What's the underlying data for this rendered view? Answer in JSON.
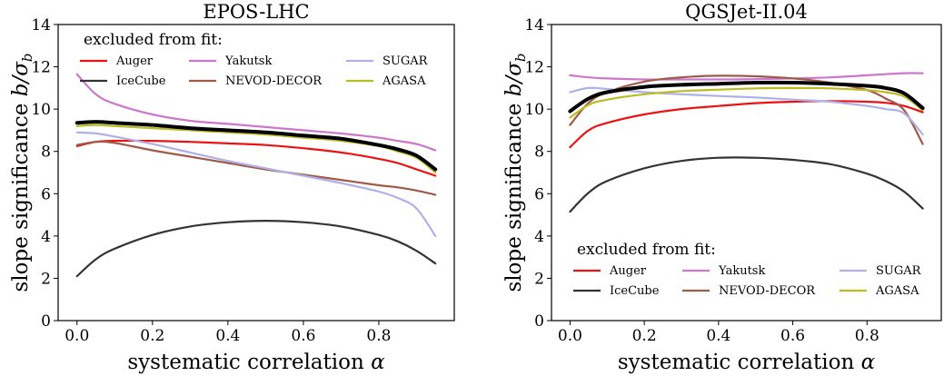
{
  "chart_data": [
    {
      "type": "line",
      "title": "EPOS-LHC",
      "xlabel": "systematic correlation α",
      "ylabel": "slope significance b/σ_b",
      "xlim": [
        -0.05,
        1.0
      ],
      "ylim": [
        0,
        14
      ],
      "xticks": [
        "0.0",
        "0.2",
        "0.4",
        "0.6",
        "0.8"
      ],
      "yticks": [
        "0",
        "2",
        "4",
        "6",
        "8",
        "10",
        "12",
        "14"
      ],
      "legend_title": "excluded from fit:",
      "legend_position": "top",
      "x": [
        0.0,
        0.05,
        0.1,
        0.2,
        0.3,
        0.4,
        0.5,
        0.6,
        0.7,
        0.8,
        0.85,
        0.9,
        0.95
      ],
      "series": [
        {
          "name": "Auger",
          "color": "#ee1111",
          "values": [
            8.25,
            8.45,
            8.5,
            8.5,
            8.45,
            8.38,
            8.3,
            8.15,
            7.95,
            7.65,
            7.45,
            7.15,
            6.85
          ]
        },
        {
          "name": "IceCube",
          "color": "#333333",
          "values": [
            2.1,
            2.9,
            3.4,
            4.05,
            4.45,
            4.65,
            4.72,
            4.65,
            4.45,
            4.05,
            3.75,
            3.3,
            2.7
          ]
        },
        {
          "name": "Yakutsk",
          "color": "#cc77cc",
          "values": [
            11.65,
            10.7,
            10.25,
            9.75,
            9.45,
            9.3,
            9.15,
            9.0,
            8.85,
            8.65,
            8.5,
            8.35,
            8.05
          ]
        },
        {
          "name": "NEVOD-DECOR",
          "color": "#a05a4a",
          "values": [
            8.3,
            8.45,
            8.4,
            8.05,
            7.75,
            7.45,
            7.15,
            6.9,
            6.65,
            6.4,
            6.3,
            6.15,
            5.95
          ]
        },
        {
          "name": "SUGAR",
          "color": "#b0b0e8",
          "values": [
            8.9,
            8.85,
            8.7,
            8.35,
            7.95,
            7.55,
            7.2,
            6.85,
            6.5,
            6.1,
            5.8,
            5.3,
            4.0
          ]
        },
        {
          "name": "AGASA",
          "color": "#bbbb22",
          "values": [
            9.2,
            9.25,
            9.2,
            9.1,
            9.0,
            8.9,
            8.8,
            8.65,
            8.5,
            8.25,
            8.0,
            7.7,
            7.0
          ]
        },
        {
          "name": "",
          "color": "#000000",
          "values": [
            9.35,
            9.4,
            9.35,
            9.25,
            9.1,
            9.0,
            8.9,
            8.75,
            8.6,
            8.3,
            8.1,
            7.8,
            7.15
          ]
        }
      ]
    },
    {
      "type": "line",
      "title": "QGSJet-II.04",
      "xlabel": "systematic correlation α",
      "ylabel": "slope significance b/σ_b",
      "xlim": [
        -0.05,
        1.0
      ],
      "ylim": [
        0,
        14
      ],
      "xticks": [
        "0.0",
        "0.2",
        "0.4",
        "0.6",
        "0.8"
      ],
      "yticks": [
        "0",
        "2",
        "4",
        "6",
        "8",
        "10",
        "12",
        "14"
      ],
      "legend_title": "excluded from fit:",
      "legend_position": "bottom",
      "x": [
        0.0,
        0.05,
        0.1,
        0.2,
        0.3,
        0.4,
        0.5,
        0.6,
        0.7,
        0.8,
        0.85,
        0.9,
        0.95
      ],
      "series": [
        {
          "name": "Auger",
          "color": "#ee1111",
          "values": [
            8.2,
            9.0,
            9.35,
            9.75,
            10.0,
            10.15,
            10.28,
            10.35,
            10.38,
            10.35,
            10.3,
            10.15,
            9.85
          ]
        },
        {
          "name": "IceCube",
          "color": "#333333",
          "values": [
            5.15,
            6.05,
            6.6,
            7.2,
            7.55,
            7.7,
            7.7,
            7.6,
            7.4,
            6.95,
            6.6,
            6.1,
            5.3
          ]
        },
        {
          "name": "Yakutsk",
          "color": "#cc77cc",
          "values": [
            11.6,
            11.5,
            11.45,
            11.4,
            11.4,
            11.4,
            11.42,
            11.45,
            11.5,
            11.6,
            11.65,
            11.7,
            11.7
          ]
        },
        {
          "name": "NEVOD-DECOR",
          "color": "#a05a4a",
          "values": [
            9.25,
            10.3,
            10.8,
            11.3,
            11.5,
            11.58,
            11.55,
            11.45,
            11.25,
            10.9,
            10.5,
            9.95,
            8.35
          ]
        },
        {
          "name": "SUGAR",
          "color": "#b0b0e8",
          "values": [
            10.8,
            11.0,
            10.95,
            10.8,
            10.7,
            10.62,
            10.55,
            10.45,
            10.35,
            10.15,
            10.0,
            9.8,
            8.8
          ]
        },
        {
          "name": "AGASA",
          "color": "#bbbb22",
          "values": [
            9.6,
            10.2,
            10.45,
            10.7,
            10.85,
            10.92,
            10.98,
            11.0,
            10.98,
            10.9,
            10.8,
            10.6,
            9.95
          ]
        },
        {
          "name": "",
          "color": "#000000",
          "values": [
            9.9,
            10.5,
            10.8,
            11.05,
            11.15,
            11.2,
            11.25,
            11.25,
            11.2,
            11.1,
            11.0,
            10.75,
            10.05
          ]
        }
      ]
    }
  ]
}
